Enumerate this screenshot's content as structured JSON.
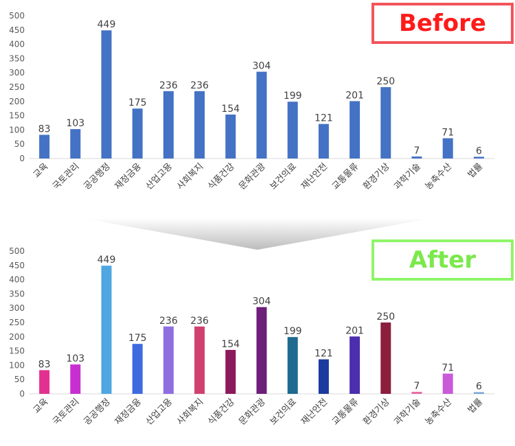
{
  "badges": {
    "before": "Before",
    "after": "After",
    "before_color": "#ff1a1a",
    "after_color": "#7be84c"
  },
  "chart_data": [
    {
      "type": "bar",
      "name_key": "before",
      "categories": [
        "교육",
        "국토관리",
        "공공행정",
        "재정금융",
        "산업고용",
        "사회복지",
        "식품건강",
        "문화관광",
        "보건의료",
        "재난안전",
        "교통물류",
        "환경기상",
        "과학기술",
        "농축수산",
        "법률"
      ],
      "values": [
        83,
        103,
        449,
        175,
        236,
        236,
        154,
        304,
        199,
        121,
        201,
        250,
        7,
        71,
        6
      ],
      "ylim": [
        0,
        500
      ],
      "yticks": [
        0,
        50,
        100,
        150,
        200,
        250,
        300,
        350,
        400,
        450,
        500
      ],
      "grid": false,
      "colors": [
        "#4472c4"
      ]
    },
    {
      "type": "bar",
      "name_key": "after",
      "categories": [
        "교육",
        "국토관리",
        "공공행정",
        "재정금융",
        "산업고용",
        "사회복지",
        "식품건강",
        "문화관광",
        "보건의료",
        "재난안전",
        "교통물류",
        "환경기상",
        "과학기술",
        "농축수산",
        "법률"
      ],
      "values": [
        83,
        103,
        449,
        175,
        236,
        236,
        154,
        304,
        199,
        121,
        201,
        250,
        7,
        71,
        6
      ],
      "ylim": [
        0,
        500
      ],
      "yticks": [
        0,
        50,
        100,
        150,
        200,
        250,
        300,
        350,
        400,
        450,
        500
      ],
      "grid": false,
      "colors": [
        "#e2318f",
        "#c82fd0",
        "#4fa6e0",
        "#3f6ae0",
        "#8f6ee0",
        "#d1416f",
        "#8b1a5b",
        "#6e1f7a",
        "#1f6a8f",
        "#1c3b9e",
        "#4b2fae",
        "#8b1e3c",
        "#e86aa0",
        "#c95ad8",
        "#7aa6d8"
      ]
    }
  ]
}
